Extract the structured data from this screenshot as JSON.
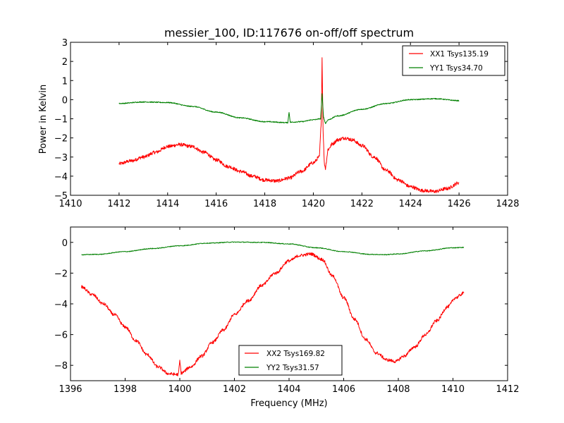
{
  "chart_data": [
    {
      "type": "line",
      "title": "messier_100, ID:117676 on-off/off spectrum",
      "xlabel": "",
      "ylabel": "Power in Kelvin",
      "xlim": [
        1410,
        1428
      ],
      "ylim": [
        -5,
        3
      ],
      "xticks": [
        "1410",
        "1412",
        "1414",
        "1416",
        "1418",
        "1420",
        "1422",
        "1424",
        "1426",
        "1428"
      ],
      "xtick_values": [
        1410,
        1412,
        1414,
        1416,
        1418,
        1420,
        1422,
        1424,
        1426,
        1428
      ],
      "yticks": [
        "−5",
        "−4",
        "−3",
        "−2",
        "−1",
        "0",
        "1",
        "2",
        "3"
      ],
      "ytick_values": [
        -5,
        -4,
        -3,
        -2,
        -1,
        0,
        1,
        2,
        3
      ],
      "grid": false,
      "legend_position": "top-right",
      "series": [
        {
          "name": "XX1 Tsys135.19",
          "color": "#ff0000",
          "noise": 0.09,
          "x": [
            1412,
            1412.5,
            1413,
            1413.5,
            1414,
            1414.5,
            1415,
            1415.5,
            1416,
            1416.5,
            1417,
            1417.5,
            1418,
            1418.5,
            1419,
            1419.5,
            1420,
            1420.25,
            1420.33,
            1420.36,
            1420.4,
            1420.45,
            1420.5,
            1420.6,
            1420.8,
            1421,
            1421.3,
            1421.6,
            1422,
            1422.5,
            1423,
            1423.5,
            1424,
            1424.5,
            1425,
            1425.5,
            1426
          ],
          "y": [
            -3.35,
            -3.2,
            -3.0,
            -2.75,
            -2.45,
            -2.35,
            -2.45,
            -2.75,
            -3.15,
            -3.5,
            -3.75,
            -4.0,
            -4.2,
            -4.25,
            -4.1,
            -3.75,
            -3.3,
            -3.0,
            -1.0,
            2.2,
            -1.5,
            -3.3,
            -3.6,
            -2.6,
            -2.3,
            -2.1,
            -2.0,
            -2.1,
            -2.4,
            -3.0,
            -3.7,
            -4.2,
            -4.55,
            -4.75,
            -4.8,
            -4.65,
            -4.35
          ]
        },
        {
          "name": "YY1 Tsys34.70",
          "color": "#008000",
          "noise": 0.025,
          "x": [
            1412,
            1413,
            1414,
            1415,
            1416,
            1417,
            1418,
            1418.95,
            1419.0,
            1419.05,
            1419.5,
            1420,
            1420.3,
            1420.36,
            1420.42,
            1420.5,
            1420.6,
            1421,
            1422,
            1423,
            1424,
            1425,
            1426
          ],
          "y": [
            -0.2,
            -0.12,
            -0.15,
            -0.35,
            -0.65,
            -0.95,
            -1.15,
            -1.2,
            -0.65,
            -1.18,
            -1.15,
            -1.05,
            -1.0,
            0.3,
            -0.9,
            -1.25,
            -1.05,
            -0.85,
            -0.5,
            -0.2,
            0.0,
            0.05,
            -0.05
          ]
        }
      ]
    },
    {
      "type": "line",
      "title": "",
      "xlabel": "Frequency (MHz)",
      "ylabel": "",
      "xlim": [
        1396,
        1412
      ],
      "ylim": [
        -9,
        1
      ],
      "xticks": [
        "1396",
        "1398",
        "1400",
        "1402",
        "1404",
        "1406",
        "1408",
        "1410",
        "1412"
      ],
      "xtick_values": [
        1396,
        1398,
        1400,
        1402,
        1404,
        1406,
        1408,
        1410,
        1412
      ],
      "yticks": [
        "−8",
        "−6",
        "−4",
        "−2",
        "0"
      ],
      "ytick_values": [
        -8,
        -6,
        -4,
        -2,
        0
      ],
      "grid": false,
      "legend_position": "bottom-center",
      "series": [
        {
          "name": "XX2 Tsys169.82",
          "color": "#ff0000",
          "noise": 0.1,
          "x": [
            1396.4,
            1396.8,
            1397.2,
            1397.6,
            1398,
            1398.4,
            1398.8,
            1399.2,
            1399.6,
            1399.95,
            1400.0,
            1400.05,
            1400.4,
            1400.8,
            1401.2,
            1401.6,
            1402,
            1402.5,
            1403,
            1403.5,
            1404,
            1404.4,
            1404.8,
            1405.2,
            1405.6,
            1406,
            1406.4,
            1406.8,
            1407.2,
            1407.6,
            1407.9,
            1408.2,
            1408.6,
            1409,
            1409.4,
            1409.8,
            1410.1,
            1410.4
          ],
          "y": [
            -2.9,
            -3.4,
            -4.0,
            -4.7,
            -5.5,
            -6.4,
            -7.3,
            -8.1,
            -8.55,
            -8.6,
            -7.7,
            -8.5,
            -8.1,
            -7.4,
            -6.5,
            -5.7,
            -4.7,
            -3.8,
            -2.8,
            -2.0,
            -1.2,
            -0.85,
            -0.75,
            -1.1,
            -2.2,
            -3.6,
            -5.0,
            -6.3,
            -7.2,
            -7.65,
            -7.75,
            -7.4,
            -6.8,
            -6.0,
            -5.1,
            -4.2,
            -3.6,
            -3.3
          ]
        },
        {
          "name": "YY2 Tsys31.57",
          "color": "#008000",
          "noise": 0.025,
          "x": [
            1396.4,
            1397,
            1398,
            1399,
            1400,
            1401,
            1402,
            1403,
            1404,
            1405,
            1406,
            1407,
            1407.5,
            1408,
            1409,
            1410,
            1410.4
          ],
          "y": [
            -0.8,
            -0.78,
            -0.6,
            -0.4,
            -0.22,
            -0.05,
            0.02,
            0.0,
            -0.1,
            -0.35,
            -0.6,
            -0.78,
            -0.8,
            -0.75,
            -0.55,
            -0.35,
            -0.33
          ]
        }
      ]
    }
  ]
}
